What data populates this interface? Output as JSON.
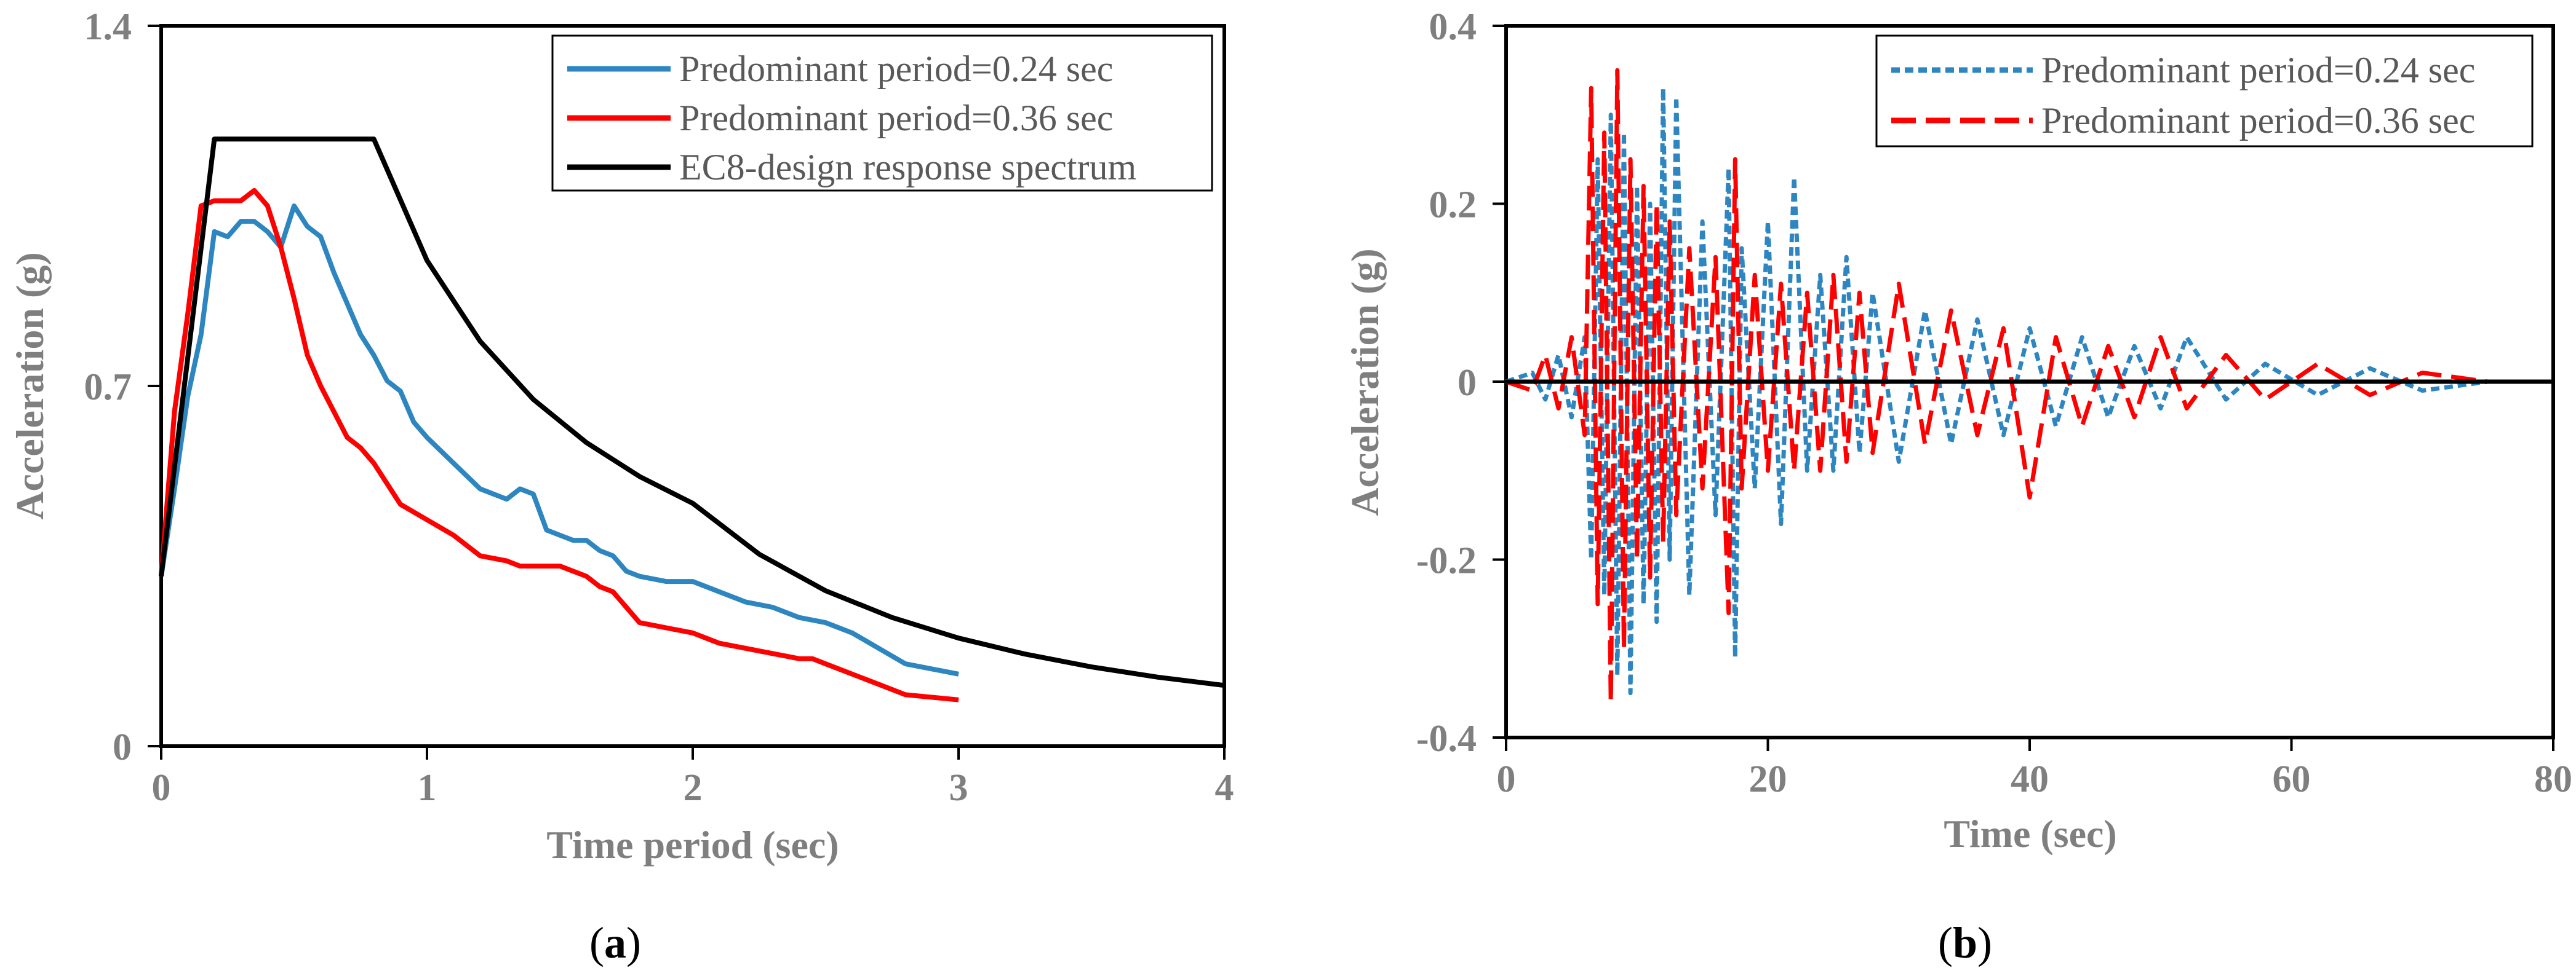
{
  "chart_data": [
    {
      "type": "line",
      "panel_label": "a",
      "xlabel": "Time period (sec)",
      "ylabel": "Acceleration (g)",
      "xlim": [
        0,
        4
      ],
      "ylim": [
        0,
        1.4
      ],
      "xticks": [
        "0",
        "1",
        "2",
        "3",
        "4"
      ],
      "yticks": [
        "0",
        "0.7",
        "1.4"
      ],
      "grid": false,
      "legend_position": "top-right",
      "series": [
        {
          "name": "Predominant period=0.24 sec",
          "color": "#2e86c1",
          "dash": "solid",
          "x": [
            0,
            0.05,
            0.1,
            0.15,
            0.2,
            0.25,
            0.3,
            0.35,
            0.4,
            0.45,
            0.5,
            0.55,
            0.6,
            0.65,
            0.7,
            0.75,
            0.8,
            0.85,
            0.9,
            0.95,
            1.0,
            1.1,
            1.2,
            1.3,
            1.35,
            1.4,
            1.45,
            1.5,
            1.55,
            1.6,
            1.65,
            1.7,
            1.75,
            1.8,
            1.9,
            2.0,
            2.1,
            2.2,
            2.3,
            2.4,
            2.5,
            2.6,
            2.7,
            2.8,
            3.0
          ],
          "y": [
            0.33,
            0.5,
            0.68,
            0.8,
            1.0,
            0.99,
            1.02,
            1.02,
            1.0,
            0.97,
            1.05,
            1.01,
            0.99,
            0.92,
            0.86,
            0.8,
            0.76,
            0.71,
            0.69,
            0.63,
            0.6,
            0.55,
            0.5,
            0.48,
            0.5,
            0.49,
            0.42,
            0.41,
            0.4,
            0.4,
            0.38,
            0.37,
            0.34,
            0.33,
            0.32,
            0.32,
            0.3,
            0.28,
            0.27,
            0.25,
            0.24,
            0.22,
            0.19,
            0.16,
            0.14
          ]
        },
        {
          "name": "Predominant period=0.36 sec",
          "color": "#ff0000",
          "dash": "solid",
          "x": [
            0,
            0.05,
            0.1,
            0.15,
            0.2,
            0.25,
            0.3,
            0.35,
            0.4,
            0.45,
            0.5,
            0.55,
            0.6,
            0.65,
            0.7,
            0.75,
            0.8,
            0.9,
            1.0,
            1.1,
            1.2,
            1.3,
            1.35,
            1.4,
            1.5,
            1.6,
            1.65,
            1.7,
            1.8,
            1.9,
            2.0,
            2.1,
            2.2,
            2.3,
            2.4,
            2.45,
            2.5,
            2.6,
            2.7,
            2.8,
            3.0
          ],
          "y": [
            0.33,
            0.65,
            0.84,
            1.05,
            1.06,
            1.06,
            1.06,
            1.08,
            1.05,
            0.97,
            0.87,
            0.76,
            0.7,
            0.65,
            0.6,
            0.58,
            0.55,
            0.47,
            0.44,
            0.41,
            0.37,
            0.36,
            0.35,
            0.35,
            0.35,
            0.33,
            0.31,
            0.3,
            0.24,
            0.23,
            0.22,
            0.2,
            0.19,
            0.18,
            0.17,
            0.17,
            0.16,
            0.14,
            0.12,
            0.1,
            0.09
          ]
        },
        {
          "name": "EC8-design response spectrum",
          "color": "#000000",
          "dash": "solid",
          "x": [
            0,
            0.2,
            0.8,
            1.0,
            1.2,
            1.4,
            1.6,
            1.8,
            2.0,
            2.25,
            2.5,
            2.75,
            3.0,
            3.25,
            3.5,
            3.75,
            4.0
          ],
          "y": [
            0.33,
            1.18,
            1.18,
            0.944,
            0.787,
            0.674,
            0.59,
            0.524,
            0.472,
            0.373,
            0.302,
            0.25,
            0.21,
            0.179,
            0.154,
            0.134,
            0.118
          ]
        }
      ]
    },
    {
      "type": "line",
      "panel_label": "b",
      "xlabel": "Time (sec)",
      "ylabel": "Acceleration (g)",
      "xlim": [
        0,
        80
      ],
      "ylim": [
        -0.4,
        0.4
      ],
      "xticks": [
        "0",
        "20",
        "40",
        "60",
        "80"
      ],
      "yticks": [
        "-0.4",
        "-0.2",
        "0",
        "0.2",
        "0.4"
      ],
      "grid": false,
      "legend_position": "top-right",
      "series": [
        {
          "name": "Predominant period=0.24 sec",
          "color": "#2e86c1",
          "dash": "short-dash",
          "x": [
            0,
            2,
            3,
            4,
            5,
            6,
            6.5,
            7,
            7.5,
            8,
            8.5,
            9,
            9.5,
            10,
            10.5,
            11,
            11.5,
            12,
            12.5,
            13,
            14,
            15,
            16,
            17,
            17.5,
            18,
            19,
            20,
            21,
            22,
            23,
            24,
            25,
            26,
            27,
            28,
            30,
            32,
            34,
            36,
            38,
            40,
            42,
            44,
            46,
            48,
            50,
            52,
            55,
            58,
            62,
            66,
            70,
            75
          ],
          "y": [
            0,
            0.01,
            -0.02,
            0.03,
            -0.04,
            0.05,
            -0.2,
            0.25,
            -0.24,
            0.3,
            -0.33,
            0.28,
            -0.35,
            0.22,
            -0.25,
            0.2,
            -0.27,
            0.33,
            -0.2,
            0.32,
            -0.24,
            0.18,
            -0.15,
            0.24,
            -0.31,
            0.15,
            -0.12,
            0.18,
            -0.16,
            0.23,
            -0.1,
            0.12,
            -0.1,
            0.14,
            -0.08,
            0.1,
            -0.09,
            0.08,
            -0.07,
            0.07,
            -0.06,
            0.06,
            -0.05,
            0.05,
            -0.04,
            0.04,
            -0.03,
            0.05,
            -0.02,
            0.02,
            -0.015,
            0.015,
            -0.01,
            0
          ]
        },
        {
          "name": "Predominant period=0.36 sec",
          "color": "#ff0000",
          "dash": "long-dash",
          "x": [
            0,
            2,
            3,
            4,
            5,
            6,
            6.5,
            7,
            7.5,
            8,
            8.5,
            9,
            9.5,
            10,
            10.5,
            11,
            11.5,
            12,
            12.5,
            13,
            14,
            15,
            16,
            17,
            17.5,
            18,
            19,
            20,
            21,
            22,
            23,
            24,
            25,
            26,
            27,
            28,
            30,
            32,
            34,
            36,
            38,
            40,
            42,
            44,
            46,
            48,
            50,
            52,
            55,
            58,
            62,
            66,
            70,
            75
          ],
          "y": [
            0,
            -0.01,
            0.03,
            -0.03,
            0.05,
            -0.06,
            0.33,
            -0.25,
            0.28,
            -0.36,
            0.35,
            -0.3,
            0.25,
            -0.2,
            0.22,
            -0.22,
            0.2,
            -0.18,
            0.18,
            -0.15,
            0.15,
            -0.12,
            0.14,
            -0.26,
            0.25,
            -0.12,
            0.12,
            -0.1,
            0.11,
            -0.1,
            0.1,
            -0.1,
            0.12,
            -0.09,
            0.1,
            -0.08,
            0.11,
            -0.07,
            0.08,
            -0.06,
            0.06,
            -0.13,
            0.05,
            -0.05,
            0.04,
            -0.04,
            0.05,
            -0.03,
            0.03,
            -0.02,
            0.02,
            -0.015,
            0.01,
            0
          ]
        },
        {
          "name": "",
          "color": "#000000",
          "dash": "solid",
          "x": [
            0,
            80
          ],
          "y": [
            0,
            0
          ]
        }
      ]
    }
  ]
}
